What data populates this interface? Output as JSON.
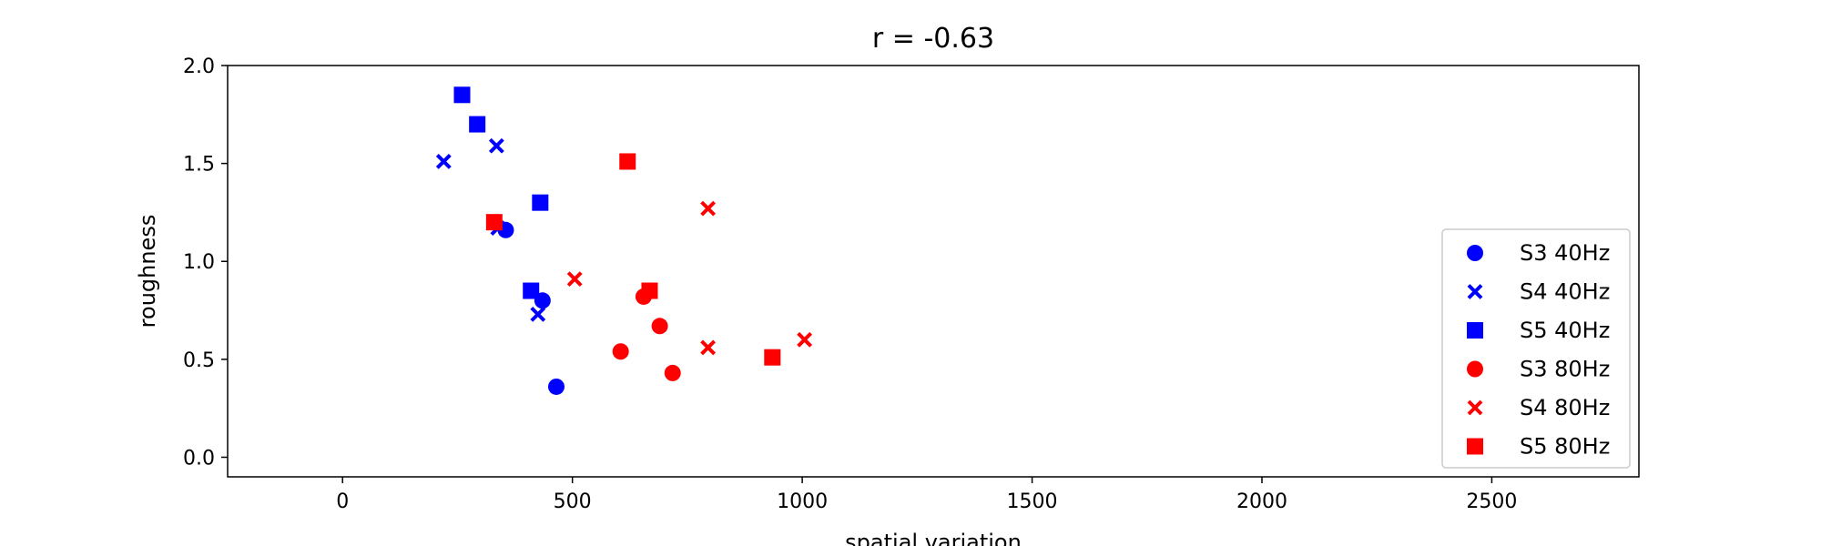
{
  "chart_data": {
    "type": "scatter",
    "title": "r = -0.63",
    "xlabel": "spatial variation",
    "ylabel": "roughness",
    "xlim": [
      -250,
      2820
    ],
    "ylim": [
      -0.1,
      2.0
    ],
    "xticks": [
      0,
      500,
      1000,
      1500,
      2000,
      2500
    ],
    "xtick_labels": [
      "0",
      "500",
      "1000",
      "1500",
      "2000",
      "2500"
    ],
    "yticks": [
      0.0,
      0.5,
      1.0,
      1.5,
      2.0
    ],
    "ytick_labels": [
      "0.0",
      "0.5",
      "1.0",
      "1.5",
      "2.0"
    ],
    "grid": false,
    "legend_position": "right",
    "series": [
      {
        "name": "S3 40Hz",
        "color": "#0000ff",
        "marker": "circle",
        "points": [
          [
            355,
            1.16
          ],
          [
            435,
            0.8
          ],
          [
            465,
            0.36
          ]
        ]
      },
      {
        "name": "S4 40Hz",
        "color": "#0000ff",
        "marker": "x",
        "points": [
          [
            220,
            1.51
          ],
          [
            335,
            1.59
          ],
          [
            425,
            0.73
          ],
          [
            338,
            1.17
          ]
        ]
      },
      {
        "name": "S5 40Hz",
        "color": "#0000ff",
        "marker": "square",
        "points": [
          [
            260,
            1.85
          ],
          [
            293,
            1.7
          ],
          [
            430,
            1.3
          ],
          [
            410,
            0.85
          ]
        ]
      },
      {
        "name": "S3 80Hz",
        "color": "#ff0000",
        "marker": "circle",
        "points": [
          [
            605,
            0.54
          ],
          [
            655,
            0.82
          ],
          [
            690,
            0.67
          ],
          [
            718,
            0.43
          ]
        ]
      },
      {
        "name": "S4 80Hz",
        "color": "#ff0000",
        "marker": "x",
        "points": [
          [
            505,
            0.91
          ],
          [
            795,
            1.27
          ],
          [
            795,
            0.56
          ],
          [
            1005,
            0.6
          ]
        ]
      },
      {
        "name": "S5 80Hz",
        "color": "#ff0000",
        "marker": "square",
        "points": [
          [
            330,
            1.2
          ],
          [
            620,
            1.51
          ],
          [
            668,
            0.85
          ],
          [
            935,
            0.51
          ]
        ]
      }
    ]
  }
}
